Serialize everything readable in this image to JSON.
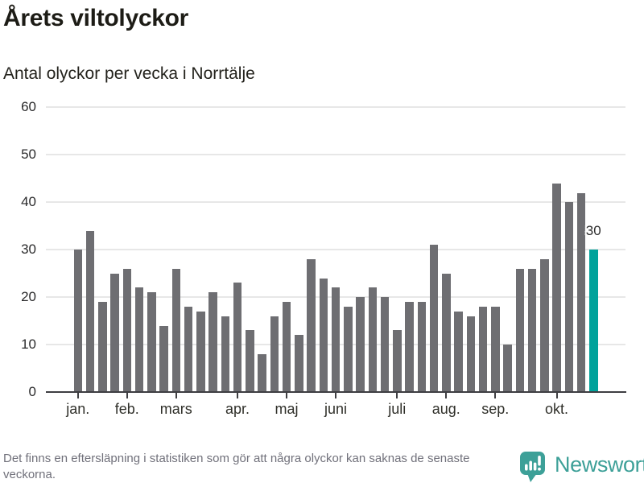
{
  "title": "Årets viltolyckor",
  "subtitle": "Antal olyckor per vecka i Norrtälje",
  "chart_data": {
    "type": "bar",
    "title": "Årets viltolyckor",
    "subtitle": "Antal olyckor per vecka i Norrtälje",
    "x_unit": "vecka",
    "values": [
      30,
      34,
      19,
      25,
      26,
      22,
      21,
      14,
      26,
      18,
      17,
      21,
      16,
      23,
      13,
      8,
      16,
      19,
      12,
      28,
      24,
      22,
      18,
      20,
      22,
      20,
      13,
      19,
      19,
      31,
      25,
      17,
      16,
      18,
      18,
      10,
      26,
      26,
      28,
      44,
      40,
      42,
      30
    ],
    "highlight_last_bar": true,
    "annotation": {
      "text": "30",
      "bar_index": 42
    },
    "y_ticks": [
      0,
      10,
      20,
      30,
      40,
      50,
      60
    ],
    "ylim": [
      0,
      60
    ],
    "grid": "horizontal",
    "legend": "none",
    "month_ticks": [
      {
        "label": "jan.",
        "week_index": 0
      },
      {
        "label": "feb.",
        "week_index": 4
      },
      {
        "label": "mars",
        "week_index": 8
      },
      {
        "label": "apr.",
        "week_index": 13
      },
      {
        "label": "maj",
        "week_index": 17
      },
      {
        "label": "juni",
        "week_index": 21
      },
      {
        "label": "juli",
        "week_index": 26
      },
      {
        "label": "aug.",
        "week_index": 30
      },
      {
        "label": "sep.",
        "week_index": 34
      },
      {
        "label": "okt.",
        "week_index": 39
      }
    ],
    "colors": {
      "bar": "#6e6e72",
      "highlight": "#00a29b",
      "gridline": "#e7e7e7",
      "axis": "#3e3e42"
    }
  },
  "footer": {
    "note": "Det finns en eftersläpning i statistiken som gör att några olyckor kan saknas de senaste veckorna.",
    "brand": "Newsworthy",
    "brand_color": "#3da098"
  }
}
